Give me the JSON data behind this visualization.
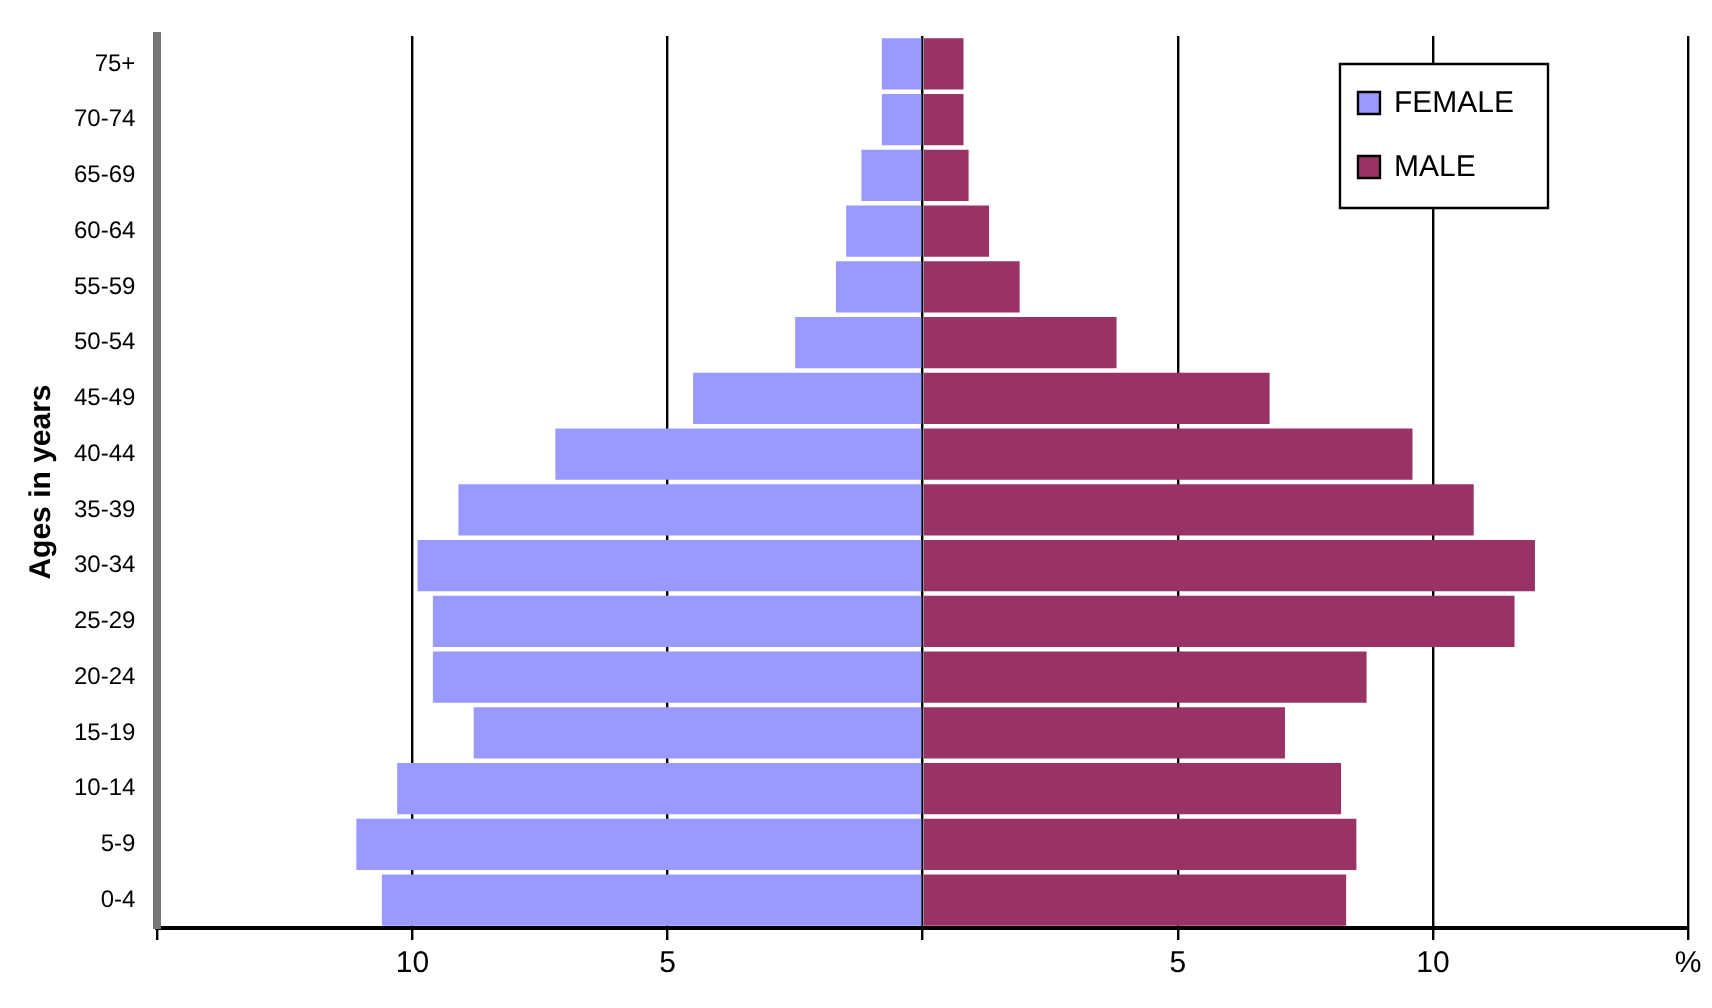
{
  "chart_data": {
    "type": "bar",
    "orientation": "horizontal",
    "stacked": true,
    "ylabel": "Ages in years",
    "categories": [
      "75+",
      "70-74",
      "65-69",
      "60-64",
      "55-59",
      "50-54",
      "45-49",
      "40-44",
      "35-39",
      "30-34",
      "25-29",
      "20-24",
      "15-19",
      "10-14",
      "5-9",
      "0-4"
    ],
    "series": [
      {
        "name": "FEMALE",
        "color": "#9999ff",
        "values": [
          -0.8,
          -0.8,
          -1.2,
          -1.5,
          -1.7,
          -2.5,
          -4.5,
          -7.2,
          -9.1,
          -9.9,
          -9.6,
          -9.6,
          -8.8,
          -10.3,
          -11.1,
          -10.6
        ]
      },
      {
        "name": "MALE",
        "color": "#993366",
        "values": [
          0.8,
          0.8,
          0.9,
          1.3,
          1.9,
          3.8,
          6.8,
          9.6,
          10.8,
          12.0,
          11.6,
          8.7,
          7.1,
          8.2,
          8.5,
          8.3
        ]
      }
    ],
    "xlim": [
      -15,
      15
    ],
    "xticks": [
      {
        "value": -15,
        "label": null
      },
      {
        "value": -10,
        "label": "10"
      },
      {
        "value": -5,
        "label": "5"
      },
      {
        "value": 0,
        "label": null
      },
      {
        "value": 5,
        "label": "5"
      },
      {
        "value": 10,
        "label": "10"
      },
      {
        "value": 15,
        "label": "%"
      }
    ],
    "grid": "x",
    "legend": "top right"
  }
}
